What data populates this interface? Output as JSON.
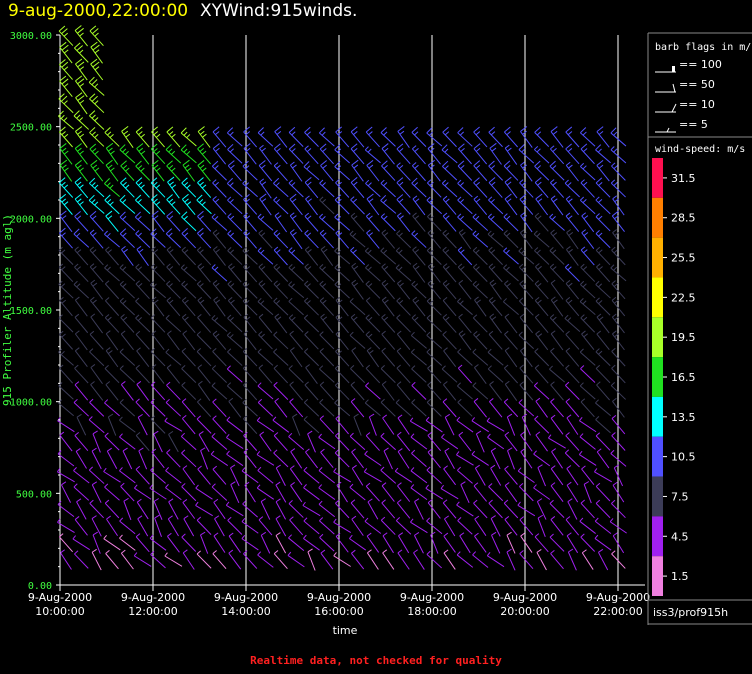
{
  "header": {
    "date_time": "9-aug-2000,22:00:00",
    "plot_name": "XYWind:915winds."
  },
  "footer": {
    "note": "Realtime data, not checked for quality"
  },
  "chart_data": {
    "type": "wind-barb",
    "xlabel": "time",
    "ylabel": "915 Profiler Altitude (m agl)",
    "x_ticks": [
      {
        "date": "9-Aug-2000",
        "time": "10:00:00"
      },
      {
        "date": "9-Aug-2000",
        "time": "12:00:00"
      },
      {
        "date": "9-Aug-2000",
        "time": "14:00:00"
      },
      {
        "date": "9-Aug-2000",
        "time": "16:00:00"
      },
      {
        "date": "9-Aug-2000",
        "time": "18:00:00"
      },
      {
        "date": "9-Aug-2000",
        "time": "20:00:00"
      },
      {
        "date": "9-Aug-2000",
        "time": "22:00:00"
      }
    ],
    "xlim_hours": [
      10,
      22
    ],
    "y_ticks": [
      "0.00",
      "500.00",
      "1000.00",
      "1500.00",
      "2000.00",
      "2500.00",
      "3000.00"
    ],
    "ylim": [
      0,
      3000
    ],
    "barb_legend": {
      "title": "barb flags in m/s",
      "items": [
        "== 100",
        "== 50",
        "== 10",
        "== 5"
      ]
    },
    "colorbar": {
      "title": "wind-speed: m/s",
      "bins": [
        {
          "label": "31.5",
          "color": "#ff1050"
        },
        {
          "label": "28.5",
          "color": "#ff7f00"
        },
        {
          "label": "25.5",
          "color": "#ffb000"
        },
        {
          "label": "22.5",
          "color": "#ffff00"
        },
        {
          "label": "19.5",
          "color": "#a8ff28"
        },
        {
          "label": "16.5",
          "color": "#20e020"
        },
        {
          "label": "13.5",
          "color": "#00ffff"
        },
        {
          "label": "10.5",
          "color": "#5050ff"
        },
        {
          "label": "7.5",
          "color": "#3c3c58"
        },
        {
          "label": "4.5",
          "color": "#a020f0"
        },
        {
          "label": "1.5",
          "color": "#f080e0"
        }
      ]
    },
    "station_label": "iss3/prof915h",
    "columns_start_hour": 10.0,
    "columns_step_hour": 0.33,
    "columns": [
      [
        16,
        3000
      ],
      [
        16,
        3000
      ],
      [
        16,
        3000
      ],
      [
        16,
        2480
      ],
      [
        16,
        2480
      ],
      [
        16,
        2480
      ],
      [
        16,
        2480
      ],
      [
        16,
        2480
      ],
      [
        16,
        2480
      ],
      [
        16,
        2480
      ],
      [
        16,
        2480
      ],
      [
        16,
        2480
      ],
      [
        16,
        2480
      ],
      [
        16,
        2480
      ],
      [
        16,
        2480
      ],
      [
        16,
        2480
      ],
      [
        16,
        2480
      ],
      [
        16,
        2480
      ],
      [
        16,
        2480
      ],
      [
        16,
        2480
      ],
      [
        16,
        2480
      ],
      [
        16,
        2480
      ],
      [
        16,
        2480
      ],
      [
        16,
        2480
      ],
      [
        16,
        2480
      ],
      [
        16,
        2480
      ],
      [
        16,
        2480
      ],
      [
        16,
        2480
      ],
      [
        16,
        2480
      ],
      [
        16,
        2480
      ],
      [
        16,
        2480
      ],
      [
        16,
        2480
      ],
      [
        16,
        2480
      ],
      [
        16,
        2480
      ],
      [
        16,
        2480
      ],
      [
        16,
        2480
      ],
      [
        16,
        2480
      ]
    ]
  }
}
